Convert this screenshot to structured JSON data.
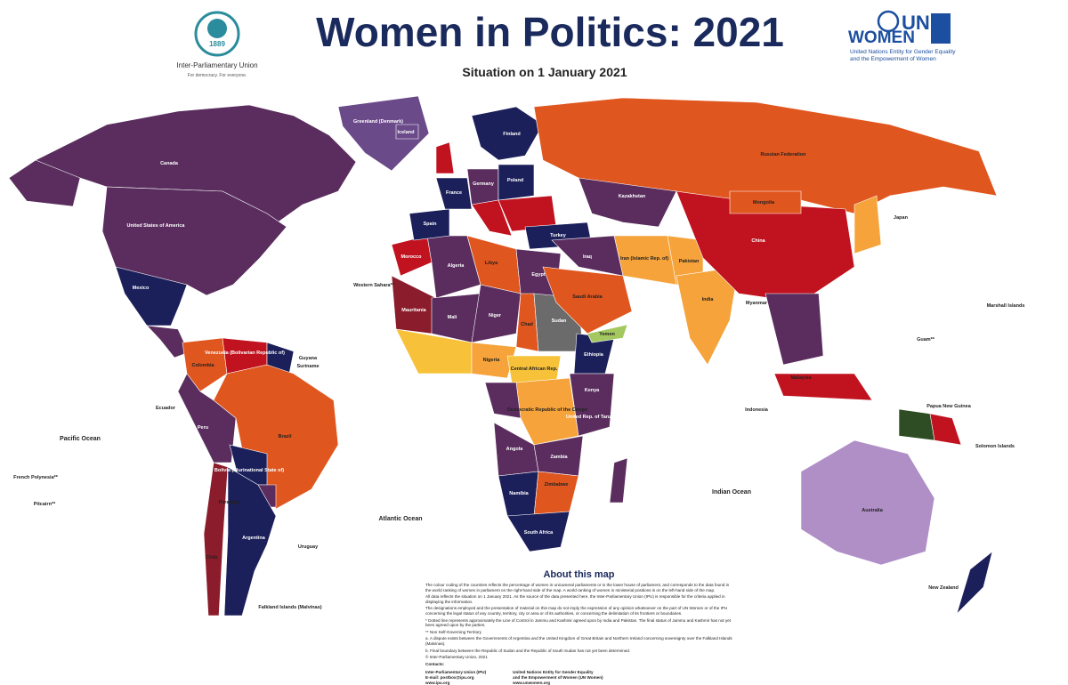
{
  "header": {
    "title": "Women in Politics: 2021",
    "subtitle": "Situation on 1 January 2021",
    "ipu": {
      "year": "1889",
      "name": "Inter-Parliamentary Union",
      "tagline": "For democracy. For everyone."
    },
    "unwomen": {
      "logo_line1": "UN",
      "logo_line2": "WOMEN",
      "name_line1": "United Nations Entity for Gender Equality",
      "name_line2": "and the Empowerment of Women"
    }
  },
  "map": {
    "labels": [
      "Canada",
      "United States of America",
      "Mexico",
      "Greenland (Denmark)",
      "Iceland",
      "Russian Federation",
      "Kazakhstan",
      "Mongolia",
      "China",
      "India",
      "Pakistan",
      "Iran (Islamic Rep. of)",
      "Iraq",
      "Saudi Arabia",
      "Yemen",
      "Turkey",
      "Spain",
      "France",
      "Germany",
      "Poland",
      "Finland",
      "Morocco",
      "Algeria",
      "Libya",
      "Egypt",
      "Mauritania",
      "Mali",
      "Niger",
      "Chad",
      "Sudan",
      "Ethiopia",
      "Nigeria",
      "Central African Rep.",
      "Democratic Republic of the Congo",
      "Kenya",
      "United Rep. of Tanzania",
      "Angola",
      "Zambia",
      "Namibia",
      "Zimbabwe",
      "South Africa",
      "Western Sahara**",
      "Venezuela (Bolivarian Republic of)",
      "Colombia",
      "Guyana",
      "Suriname",
      "Ecuador",
      "Peru",
      "Brazil",
      "Bolivia (Plurinational State of)",
      "Paraguay",
      "Chile",
      "Argentina",
      "Uruguay",
      "Falkland Islands (Malvinas)",
      "Pacific Ocean",
      "Atlantic Ocean",
      "Indian Ocean",
      "French Polynesia**",
      "Pitcairn**",
      "Japan",
      "Myanmar",
      "Malaysia",
      "Indonesia",
      "Papua New Guinea",
      "Solomon Islands",
      "Marshall Islands",
      "Guam**",
      "Australia",
      "New Zealand"
    ]
  },
  "about": {
    "title": "About this map",
    "paragraphs": [
      "The colour coding of the countries reflects the percentage of women in unicameral parliaments or in the lower house of parliament, and corresponds to the data found in the world ranking of women in parliament on the right-hand side of the map. A world ranking of women in ministerial positions is on the left-hand side of the map.",
      "All data reflects the situation on 1 January 2021. As the source of the data presented here, the Inter-Parliamentary Union (IPU) is responsible for the criteria applied in displaying the information.",
      "The designations employed and the presentation of material on this map do not imply the expression of any opinion whatsoever on the part of UN Women or of the IPU concerning the legal status of any country, territory, city or area or of its authorities, or concerning the delimitation of its frontiers or boundaries.",
      "* Dotted line represents approximately the Line of Control in Jammu and Kashmir agreed upon by India and Pakistan. The final status of Jammu and Kashmir has not yet been agreed upon by the parties.",
      "** Non Self-Governing Territory",
      "a. A dispute exists between the Governments of Argentina and the United Kingdom of Great Britain and Northern Ireland concerning sovereignty over the Falkland Islands (Malvinas).",
      "b. Final boundary between the Republic of Sudan and the Republic of South Sudan has not yet been determined.",
      "© Inter-Parliamentary Union, 2021"
    ],
    "contacts_label": "Contacts:",
    "contacts": [
      [
        "Inter-Parliamentary Union (IPU)",
        "E-mail: postbox@ipu.org",
        "www.ipu.org"
      ],
      [
        "United Nations Entity for Gender Equality",
        "and the Empowerment of Women (UN Women)",
        "www.unwomen.org"
      ]
    ]
  }
}
